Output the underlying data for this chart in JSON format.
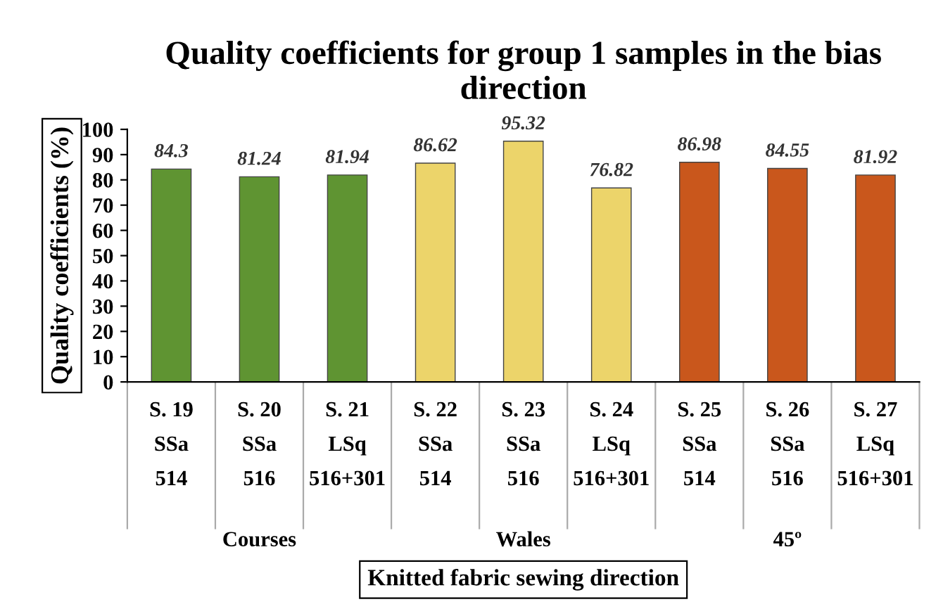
{
  "chart_data": {
    "type": "bar",
    "title": "Quality coefficients for group 1 samples in the bias direction",
    "categories": [
      "S. 19\nSSa\n514",
      "S. 20\nSSa\n516",
      "S. 21\nLSq\n516+301",
      "S. 22\nSSa\n514",
      "S. 23\nSSa\n516",
      "S. 24\nLSq\n516+301",
      "S. 25\nSSa\n514",
      "S. 26\nSSa\n516",
      "S. 27\nLSq\n516+301"
    ],
    "values": [
      84.3,
      81.24,
      81.94,
      86.62,
      95.32,
      76.82,
      86.98,
      84.55,
      81.92
    ],
    "colors": [
      "#5f9432",
      "#5f9432",
      "#5f9432",
      "#ecd46a",
      "#ecd46a",
      "#ecd46a",
      "#c9571c",
      "#c9571c",
      "#c9571c"
    ],
    "data_labels": true,
    "ylim": [
      0,
      100
    ],
    "yticks": [
      0,
      10,
      20,
      30,
      40,
      50,
      60,
      70,
      80,
      90,
      100
    ],
    "xlabel": "Knitted fabric sewing direction",
    "ylabel": "Quality coefficients (%)",
    "annotations": [
      "Courses",
      "Wales",
      "45º"
    ],
    "grid": false,
    "legend": false
  }
}
